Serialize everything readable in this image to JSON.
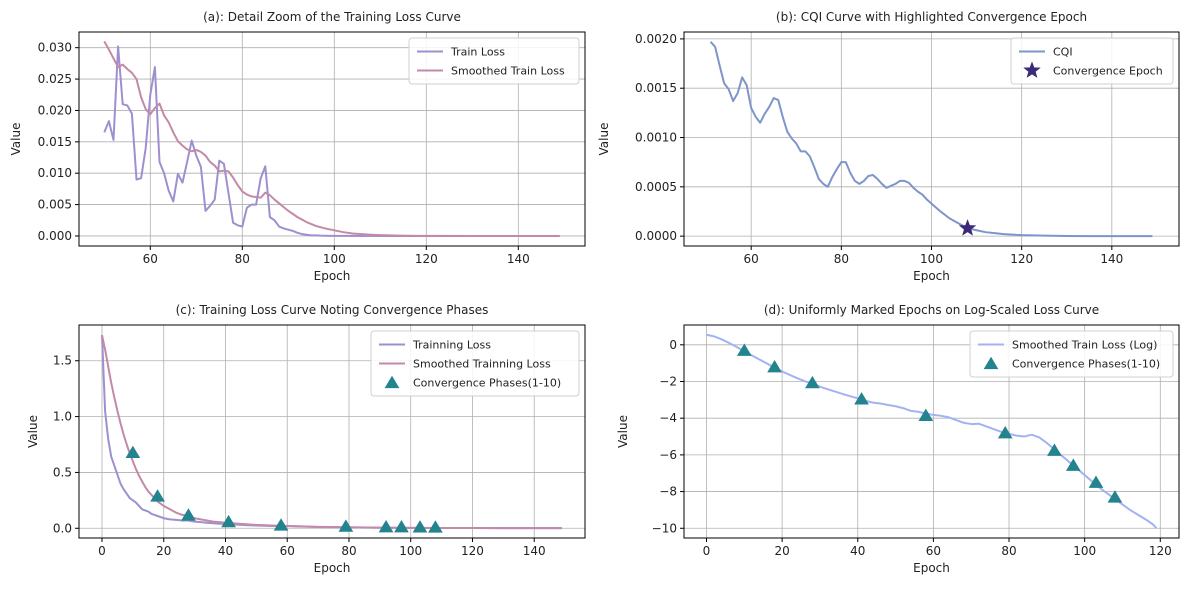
{
  "chart_data": [
    {
      "type": "line",
      "title": "(a): Detail Zoom of the Training Loss Curve",
      "xlabel": "Epoch",
      "ylabel": "Value",
      "xlim": [
        44.5,
        154.5
      ],
      "ylim": [
        -0.0016,
        0.0325
      ],
      "xticks": [
        60,
        80,
        100,
        120,
        140
      ],
      "yticks": [
        0.0,
        0.005,
        0.01,
        0.015,
        0.02,
        0.025,
        0.03
      ],
      "ytick_labels": [
        "0.000",
        "0.005",
        "0.010",
        "0.015",
        "0.020",
        "0.025",
        "0.030"
      ],
      "grid": true,
      "legend": "top-right",
      "series": [
        {
          "name": "Train Loss",
          "color": "#9f8fd0",
          "x": [
            50,
            51,
            52,
            53,
            54,
            55,
            56,
            57,
            58,
            59,
            60,
            61,
            62,
            63,
            64,
            65,
            66,
            67,
            68,
            69,
            70,
            71,
            72,
            73,
            74,
            75,
            76,
            77,
            78,
            79,
            80,
            81,
            82,
            83,
            84,
            85,
            86,
            87,
            88,
            89,
            90,
            91,
            92,
            93,
            94,
            95,
            96,
            97,
            98,
            99,
            100,
            110,
            120,
            130,
            140,
            149
          ],
          "y": [
            0.0165,
            0.0183,
            0.0153,
            0.0302,
            0.021,
            0.0208,
            0.0195,
            0.009,
            0.0092,
            0.014,
            0.0225,
            0.0269,
            0.0118,
            0.01,
            0.0072,
            0.0055,
            0.0099,
            0.0085,
            0.0118,
            0.0152,
            0.0128,
            0.011,
            0.004,
            0.0048,
            0.0058,
            0.012,
            0.0115,
            0.0068,
            0.0021,
            0.0017,
            0.0015,
            0.0045,
            0.005,
            0.005,
            0.0092,
            0.0111,
            0.003,
            0.0025,
            0.0015,
            0.0012,
            0.001,
            0.0008,
            0.0005,
            0.0003,
            0.0002,
            0.0001,
            0.0001,
            5e-05,
            3e-05,
            2e-05,
            1e-05,
            0,
            0,
            0,
            0,
            0
          ]
        },
        {
          "name": "Smoothed Train Loss",
          "color": "#c28aa8",
          "x": [
            50,
            51,
            52,
            53,
            54,
            55,
            56,
            57,
            58,
            59,
            60,
            61,
            62,
            63,
            64,
            65,
            66,
            67,
            68,
            69,
            70,
            71,
            72,
            73,
            74,
            75,
            76,
            77,
            78,
            79,
            80,
            81,
            82,
            83,
            84,
            85,
            86,
            87,
            88,
            89,
            90,
            92,
            94,
            96,
            98,
            100,
            102,
            104,
            106,
            108,
            110,
            114,
            118,
            122,
            130,
            140,
            149
          ],
          "y": [
            0.031,
            0.0297,
            0.0283,
            0.0269,
            0.0273,
            0.0266,
            0.026,
            0.025,
            0.0221,
            0.0202,
            0.0194,
            0.0204,
            0.0211,
            0.0192,
            0.0181,
            0.0165,
            0.0151,
            0.0144,
            0.0138,
            0.0135,
            0.0137,
            0.0134,
            0.0128,
            0.0118,
            0.0112,
            0.0103,
            0.0104,
            0.0103,
            0.0093,
            0.0081,
            0.0071,
            0.0066,
            0.0063,
            0.0062,
            0.0061,
            0.0069,
            0.0065,
            0.0058,
            0.0052,
            0.0046,
            0.004,
            0.003,
            0.0022,
            0.0016,
            0.0012,
            0.0009,
            0.0006,
            0.0004,
            0.0003,
            0.0002,
            0.00013,
            5e-05,
            2e-05,
            1e-05,
            0,
            0,
            0
          ]
        }
      ]
    },
    {
      "type": "line",
      "title": "(b): CQI Curve with Highlighted Convergence Epoch",
      "xlabel": "Epoch",
      "ylabel": "Value",
      "xlim": [
        45.1,
        154.9
      ],
      "ylim": [
        -0.0001,
        0.00207
      ],
      "xticks": [
        60,
        80,
        100,
        120,
        140
      ],
      "yticks": [
        0.0,
        0.0005,
        0.001,
        0.0015,
        0.002
      ],
      "ytick_labels": [
        "0.0000",
        "0.0005",
        "0.0010",
        "0.0015",
        "0.0020"
      ],
      "grid": true,
      "legend": "top-right",
      "series": [
        {
          "name": "CQI",
          "color": "#7e95ca",
          "x": [
            51,
            52,
            53,
            54,
            55,
            56,
            57,
            58,
            59,
            60,
            61,
            62,
            63,
            64,
            65,
            66,
            67,
            68,
            69,
            70,
            71,
            72,
            73,
            74,
            75,
            76,
            77,
            78,
            79,
            80,
            81,
            82,
            83,
            84,
            85,
            86,
            87,
            88,
            89,
            90,
            91,
            92,
            93,
            94,
            95,
            96,
            97,
            98,
            99,
            100,
            102,
            104,
            106,
            108,
            110,
            112,
            114,
            116,
            118,
            120,
            125,
            130,
            135,
            140,
            145,
            149
          ],
          "y": [
            0.00197,
            0.00192,
            0.00173,
            0.00155,
            0.00149,
            0.00137,
            0.00145,
            0.00161,
            0.00153,
            0.0013,
            0.00121,
            0.00115,
            0.00124,
            0.00131,
            0.0014,
            0.00138,
            0.00121,
            0.00106,
            0.00099,
            0.00094,
            0.00086,
            0.00086,
            0.00081,
            0.0007,
            0.00058,
            0.00053,
            0.0005,
            0.0006,
            0.00068,
            0.00075,
            0.00075,
            0.00064,
            0.00056,
            0.00053,
            0.00056,
            0.00061,
            0.00062,
            0.00058,
            0.00053,
            0.00049,
            0.00051,
            0.00053,
            0.00056,
            0.00056,
            0.00054,
            0.00049,
            0.00045,
            0.00042,
            0.00037,
            0.00033,
            0.00025,
            0.00018,
            0.00013,
            8e-05,
            6e-05,
            4e-05,
            3e-05,
            2e-05,
            1.5e-05,
            1e-05,
            5e-06,
            2e-06,
            0,
            0,
            0,
            0
          ]
        }
      ],
      "marker_series": {
        "name": "Convergence Epoch",
        "color": "#3b2a7a",
        "shape": "star",
        "x": [
          108
        ],
        "y": [
          8e-05
        ]
      }
    },
    {
      "type": "line",
      "title": "(c): Training Loss Curve Noting Convergence Phases",
      "xlabel": "Epoch",
      "ylabel": "Value",
      "xlim": [
        -7.45,
        156.45
      ],
      "ylim": [
        -0.087,
        1.82
      ],
      "xticks": [
        0,
        20,
        40,
        60,
        80,
        100,
        120,
        140
      ],
      "yticks": [
        0.0,
        0.5,
        1.0,
        1.5
      ],
      "ytick_labels": [
        "0.0",
        "0.5",
        "1.0",
        "1.5"
      ],
      "grid": true,
      "legend": "top-right",
      "series": [
        {
          "name": "Trainning Loss",
          "color": "#9f8fd0",
          "x": [
            0,
            1,
            2,
            3,
            4,
            5,
            6,
            7,
            8,
            9,
            10,
            11,
            12,
            13,
            14,
            15,
            16,
            17,
            18,
            19,
            20,
            22,
            24,
            26,
            28,
            30,
            32,
            34,
            36,
            38,
            40,
            45,
            50,
            55,
            60,
            70,
            80,
            90,
            100,
            110,
            120,
            130,
            140,
            149
          ],
          "y": [
            1.73,
            1.05,
            0.8,
            0.64,
            0.56,
            0.48,
            0.4,
            0.35,
            0.31,
            0.27,
            0.25,
            0.23,
            0.2,
            0.17,
            0.16,
            0.15,
            0.13,
            0.12,
            0.11,
            0.1,
            0.09,
            0.08,
            0.075,
            0.07,
            0.07,
            0.06,
            0.055,
            0.05,
            0.045,
            0.04,
            0.04,
            0.03,
            0.025,
            0.02,
            0.02,
            0.012,
            0.008,
            0.005,
            0.004,
            0.003,
            0.002,
            0.001,
            0.001,
            0.001
          ]
        },
        {
          "name": "Smoothed Trainning Loss",
          "color": "#c28aa8",
          "x": [
            0,
            1,
            2,
            3,
            4,
            5,
            6,
            7,
            8,
            9,
            10,
            11,
            12,
            13,
            14,
            15,
            16,
            17,
            18,
            20,
            22,
            24,
            26,
            28,
            30,
            32,
            34,
            36,
            38,
            40,
            45,
            50,
            55,
            60,
            70,
            80,
            90,
            100,
            110,
            120,
            130,
            140,
            149
          ],
          "y": [
            1.73,
            1.6,
            1.45,
            1.3,
            1.17,
            1.05,
            0.94,
            0.84,
            0.75,
            0.67,
            0.6,
            0.53,
            0.47,
            0.42,
            0.37,
            0.33,
            0.3,
            0.27,
            0.24,
            0.2,
            0.17,
            0.14,
            0.12,
            0.11,
            0.09,
            0.08,
            0.07,
            0.06,
            0.055,
            0.05,
            0.04,
            0.03,
            0.025,
            0.02,
            0.013,
            0.009,
            0.006,
            0.004,
            0.003,
            0.002,
            0.0015,
            0.001,
            0.001
          ]
        }
      ],
      "marker_series": {
        "name": "Convergence Phases(1-10)",
        "color": "#23838f",
        "shape": "triangle",
        "x": [
          10,
          18,
          28,
          41,
          58,
          79,
          92,
          97,
          103,
          108
        ],
        "y": [
          0.67,
          0.28,
          0.11,
          0.05,
          0.02,
          0.01,
          0.005,
          0.004,
          0.003,
          0.002
        ]
      }
    },
    {
      "type": "line",
      "title": "(d): Uniformly Marked Epochs on Log-Scaled Loss Curve",
      "xlabel": "Epoch",
      "ylabel": "Value",
      "xlim": [
        -5.95,
        124.95
      ],
      "ylim": [
        -10.53,
        1.08
      ],
      "xticks": [
        0,
        20,
        40,
        60,
        80,
        100,
        120
      ],
      "yticks": [
        -10,
        -8,
        -6,
        -4,
        -2,
        0
      ],
      "ytick_labels": [
        "−10",
        "−8",
        "−6",
        "−4",
        "−2",
        "0"
      ],
      "grid": true,
      "legend": "top-right",
      "series": [
        {
          "name": "Smoothed Train Loss (Log)",
          "color": "#a3b2f2",
          "x": [
            0,
            2,
            4,
            6,
            8,
            10,
            12,
            14,
            16,
            18,
            20,
            22,
            24,
            26,
            28,
            30,
            32,
            34,
            36,
            38,
            40,
            42,
            44,
            46,
            48,
            50,
            52,
            54,
            56,
            58,
            60,
            62,
            64,
            66,
            68,
            70,
            72,
            74,
            76,
            78,
            80,
            82,
            84,
            86,
            88,
            90,
            92,
            94,
            96,
            98,
            100,
            102,
            104,
            106,
            108,
            110,
            112,
            114,
            116,
            118,
            119
          ],
          "y": [
            0.55,
            0.46,
            0.3,
            0.1,
            -0.12,
            -0.35,
            -0.58,
            -0.8,
            -1.02,
            -1.25,
            -1.45,
            -1.64,
            -1.82,
            -1.98,
            -2.12,
            -2.28,
            -2.42,
            -2.55,
            -2.68,
            -2.8,
            -2.92,
            -3.05,
            -3.15,
            -3.2,
            -3.28,
            -3.35,
            -3.45,
            -3.6,
            -3.65,
            -3.75,
            -3.82,
            -3.87,
            -3.95,
            -4.1,
            -4.25,
            -4.32,
            -4.3,
            -4.45,
            -4.6,
            -4.75,
            -4.85,
            -4.95,
            -5.0,
            -4.9,
            -5.05,
            -5.35,
            -5.7,
            -6.05,
            -6.4,
            -6.75,
            -7.1,
            -7.45,
            -7.8,
            -8.1,
            -8.4,
            -8.7,
            -9.0,
            -9.25,
            -9.5,
            -9.78,
            -10.0
          ]
        }
      ],
      "marker_series": {
        "name": "Convergence Phases(1-10)",
        "color": "#23838f",
        "shape": "triangle",
        "x": [
          10,
          18,
          28,
          41,
          58,
          79,
          92,
          97,
          103,
          108
        ],
        "y": [
          -0.35,
          -1.25,
          -2.12,
          -3.0,
          -3.9,
          -4.85,
          -5.8,
          -6.62,
          -7.55,
          -8.35
        ]
      }
    }
  ]
}
